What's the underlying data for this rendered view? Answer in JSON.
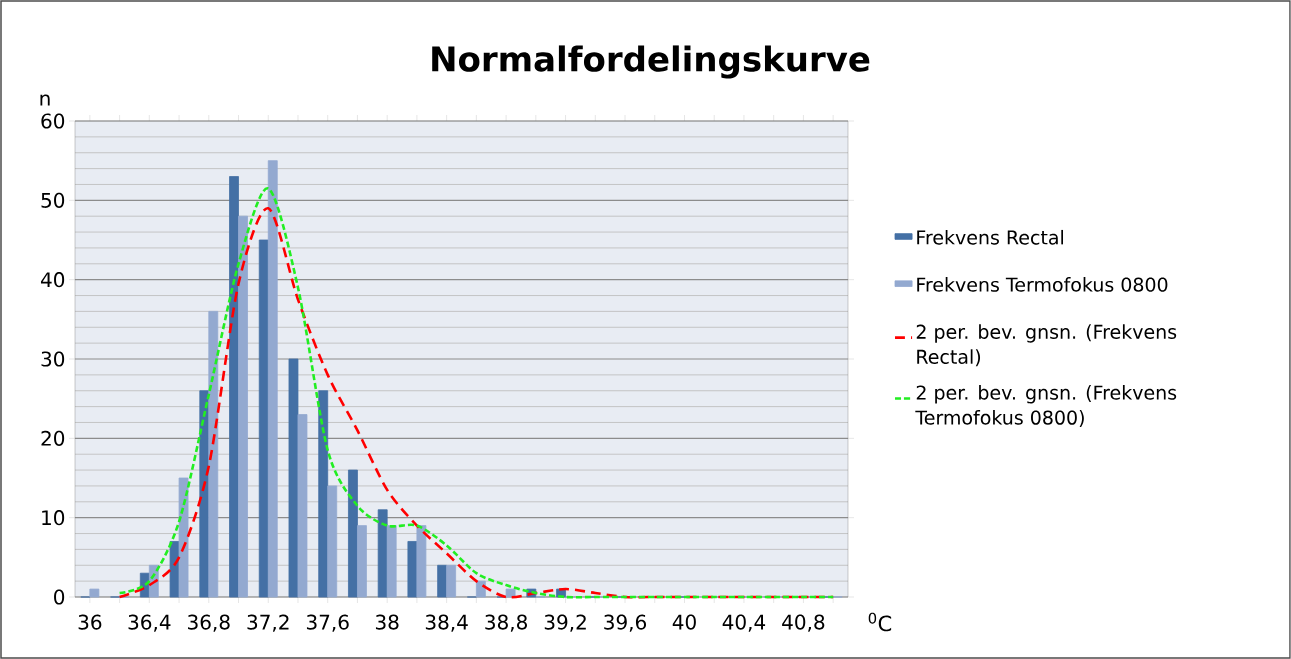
{
  "chart_data": {
    "type": "bar",
    "title": "Normalfordelingskurve",
    "ylabel": "n",
    "xlabel": "$^{0}$C",
    "categories": [
      "36",
      null,
      "36,4",
      null,
      "36,8",
      null,
      "37,2",
      null,
      "37,6",
      null,
      "38",
      null,
      "38,4",
      null,
      "38,8",
      null,
      "39,2",
      null,
      "39,6",
      null,
      "40",
      null,
      "40,4",
      null,
      "40,8",
      null
    ],
    "series": [
      {
        "name": "Frekvens Rectal",
        "color": "#4470a5",
        "values": [
          0,
          0,
          3,
          7,
          26,
          53,
          45,
          30,
          26,
          16,
          11,
          7,
          4,
          0,
          0,
          1,
          1,
          0,
          0,
          0,
          0,
          0,
          0,
          0,
          0,
          0
        ]
      },
      {
        "name": "Frekvens Termofokus 0800",
        "color": "#93a9d0",
        "values": [
          1,
          0,
          4,
          15,
          36,
          48,
          55,
          23,
          14,
          9,
          9,
          9,
          4,
          2,
          1,
          0,
          0,
          0,
          0,
          0,
          0,
          0,
          0,
          0,
          0,
          0
        ]
      },
      {
        "name": "2 per. bev. gnsn. (Frekvens Rectal)",
        "type": "line",
        "line_style": "dashed",
        "color": "#ff0000",
        "values": [
          null,
          0,
          1.5,
          5,
          16.5,
          39.5,
          49,
          37.5,
          28,
          21,
          13.5,
          9,
          5.5,
          2,
          0,
          0.5,
          1,
          0.5,
          0,
          0,
          0,
          0,
          0,
          0,
          0,
          0
        ]
      },
      {
        "name": "2 per. bev. gnsn. (Frekvens Termofokus 0800)",
        "type": "line",
        "line_style": "dashed",
        "color": "#22ee22",
        "values": [
          null,
          0.5,
          2,
          9.5,
          25.5,
          42,
          51.5,
          39,
          18.5,
          11.5,
          9,
          9,
          6.5,
          3,
          1.5,
          0.5,
          0,
          0,
          0,
          0,
          0,
          0,
          0,
          0,
          0,
          0
        ]
      }
    ],
    "ylim": [
      0,
      60
    ],
    "yticks": [
      0,
      10,
      20,
      30,
      40,
      50,
      60
    ],
    "grid": "y",
    "legend": "right"
  }
}
